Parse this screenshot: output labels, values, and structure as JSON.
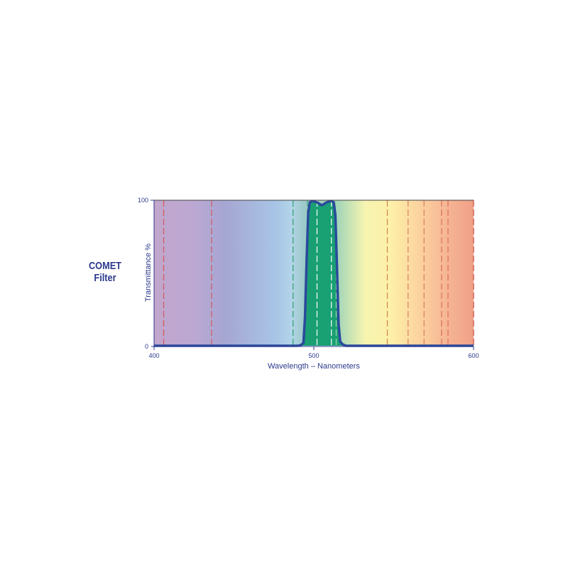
{
  "title": {
    "line1": "COMET",
    "line2": "Filter"
  },
  "chart_data": {
    "type": "area",
    "xlabel": "Wavelength – Nanometers",
    "ylabel": "Transmittance %",
    "xlim": [
      400,
      600
    ],
    "ylim": [
      0,
      100
    ],
    "x_ticks": [
      "400",
      "500",
      "600"
    ],
    "y_ticks": [
      "0",
      "100"
    ],
    "grid": false,
    "background": "visible spectrum gradient",
    "reference_lines": [
      {
        "x": 406,
        "color": "#d05a5a"
      },
      {
        "x": 436,
        "color": "#d05a5a"
      },
      {
        "x": 487,
        "color": "#2aa070"
      },
      {
        "x": 496,
        "color": "#2aa070"
      },
      {
        "x": 502,
        "color": "#ffffff"
      },
      {
        "x": 511,
        "color": "#ffffff"
      },
      {
        "x": 514,
        "color": "#9ad8a8"
      },
      {
        "x": 546,
        "color": "#d8805a"
      },
      {
        "x": 559,
        "color": "#d8805a"
      },
      {
        "x": 569,
        "color": "#d8805a"
      },
      {
        "x": 580,
        "color": "#d8705a"
      },
      {
        "x": 584,
        "color": "#d8705a"
      },
      {
        "x": 600,
        "color": "#c84a3a"
      }
    ],
    "series": [
      {
        "x": [
          400,
          490,
          492,
          493.5,
          494.5,
          495.5,
          496.5,
          497.5,
          499,
          502,
          505,
          508,
          511,
          512.5,
          513.5,
          514.5,
          515.5,
          516.5,
          518,
          520,
          600
        ],
        "y": [
          0,
          0,
          0.5,
          2,
          20,
          60,
          92,
          99,
          100,
          99,
          97,
          99,
          100,
          99,
          90,
          55,
          15,
          3,
          1,
          0,
          0
        ],
        "line_color": "#2b4a9c",
        "fill_color": "#0a9a6a"
      }
    ]
  }
}
